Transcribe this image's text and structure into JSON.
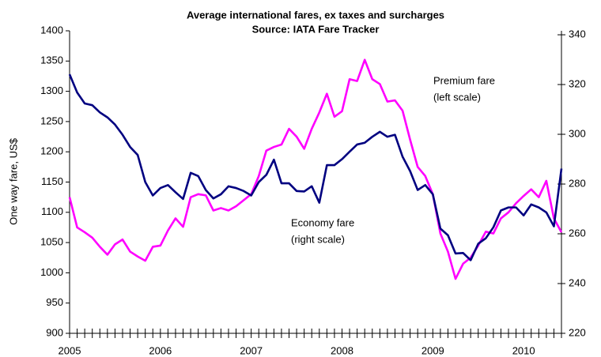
{
  "chart_data": {
    "type": "line",
    "title": "Average international fares, ex taxes and surcharges",
    "subtitle": "Source: IATA Fare Tracker",
    "y_label": "One way fare, US$",
    "annotations": [
      "Premium fare",
      "(left scale)",
      "Economy fare",
      "(right scale)"
    ],
    "categories": [
      "2005",
      null,
      null,
      null,
      null,
      null,
      null,
      null,
      null,
      null,
      null,
      null,
      "2006",
      null,
      null,
      null,
      null,
      null,
      null,
      null,
      null,
      null,
      null,
      null,
      "2007",
      null,
      null,
      null,
      null,
      null,
      null,
      null,
      null,
      null,
      null,
      null,
      "2008",
      null,
      null,
      null,
      null,
      null,
      null,
      null,
      null,
      null,
      null,
      null,
      "2009",
      null,
      null,
      null,
      null,
      null,
      null,
      null,
      null,
      null,
      null,
      null,
      "2010",
      null,
      null,
      null,
      null,
      null
    ],
    "series": [
      {
        "name": "Premium fare",
        "color": "#ff00ff",
        "axis": "y",
        "values": [
          1125,
          1075,
          1067,
          1058,
          1043,
          1030,
          1047,
          1055,
          1035,
          1027,
          1020,
          1043,
          1045,
          1070,
          1090,
          1076,
          1125,
          1130,
          1128,
          1103,
          1107,
          1103,
          1110,
          1120,
          1130,
          1160,
          1202,
          1208,
          1212,
          1238,
          1225,
          1205,
          1238,
          1265,
          1296,
          1258,
          1267,
          1320,
          1317,
          1352,
          1320,
          1312,
          1283,
          1285,
          1268,
          1220,
          1175,
          1160,
          1130,
          1065,
          1035,
          990,
          1015,
          1025,
          1045,
          1068,
          1065,
          1090,
          1100,
          1115,
          1127,
          1138,
          1125,
          1152,
          1090,
          1067
        ]
      },
      {
        "name": "Economy fare",
        "color": "#000080",
        "axis": "y2",
        "values": [
          324.1,
          316.8,
          312.4,
          311.7,
          308.8,
          306.8,
          303.9,
          299.8,
          294.9,
          291.7,
          280.8,
          275.4,
          278.4,
          279.6,
          276.7,
          274.0,
          284.5,
          283.2,
          277.6,
          274.2,
          275.9,
          279.1,
          278.4,
          277.2,
          275.4,
          280.8,
          283.7,
          289.8,
          280.3,
          280.3,
          277.2,
          277.0,
          279.1,
          272.5,
          287.6,
          287.6,
          290.0,
          293.0,
          295.9,
          296.6,
          299.0,
          301.0,
          299.0,
          299.8,
          291.0,
          285.2,
          277.6,
          279.6,
          275.9,
          262.1,
          259.4,
          252.1,
          252.3,
          249.4,
          256.0,
          258.2,
          262.6,
          269.4,
          270.6,
          270.6,
          267.4,
          271.8,
          270.6,
          268.6,
          263.0,
          286.2
        ]
      }
    ],
    "ylim": [
      900,
      1400
    ],
    "yticks": [
      900,
      950,
      1000,
      1050,
      1100,
      1150,
      1200,
      1250,
      1300,
      1350,
      1400
    ],
    "y2lim": [
      220,
      341.6
    ],
    "y2ticks": [
      220,
      240,
      260,
      280,
      300,
      320,
      340
    ],
    "grid": false
  }
}
